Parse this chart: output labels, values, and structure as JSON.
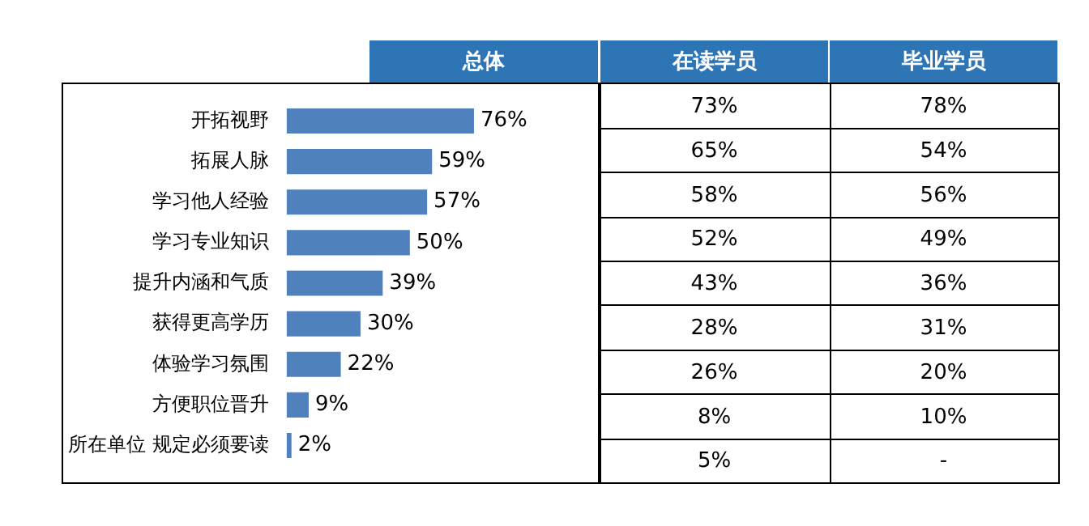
{
  "chart_data": [
    {
      "type": "bar",
      "orientation": "horizontal",
      "title": "总体",
      "categories": [
        "开拓视野",
        "拓展人脉",
        "学习他人经验",
        "学习专业知识",
        "提升内涵和气质",
        "获得更高学历",
        "体验学习氛围",
        "方便职位晋升",
        "所在单位 规定必须要读"
      ],
      "series": [
        {
          "color": "#4f81bd",
          "values": [
            76,
            59,
            57,
            50,
            39,
            30,
            22,
            9,
            2
          ],
          "value_labels": [
            "76%",
            "59%",
            "57%",
            "50%",
            "39%",
            "30%",
            "22%",
            "9%",
            "2%"
          ]
        }
      ],
      "legend": false
    },
    {
      "type": "heatmap",
      "categories": [
        "在读学员",
        "毕业学员"
      ],
      "y_categories": [
        null,
        null,
        null,
        null,
        null,
        null,
        null,
        null,
        null
      ],
      "cells": [
        [
          73,
          78
        ],
        [
          65,
          54
        ],
        [
          58,
          56
        ],
        [
          52,
          49
        ],
        [
          43,
          36
        ],
        [
          28,
          31
        ],
        [
          26,
          20
        ],
        [
          8,
          10
        ],
        [
          5,
          null
        ]
      ],
      "cell_labels": [
        [
          "73%",
          "78%"
        ],
        [
          "65%",
          "54%"
        ],
        [
          "58%",
          "56%"
        ],
        [
          "52%",
          "49%"
        ],
        [
          "43%",
          "36%"
        ],
        [
          "28%",
          "31%"
        ],
        [
          "26%",
          "20%"
        ],
        [
          "8%",
          "10%"
        ],
        [
          "5%",
          "-"
        ]
      ]
    }
  ]
}
